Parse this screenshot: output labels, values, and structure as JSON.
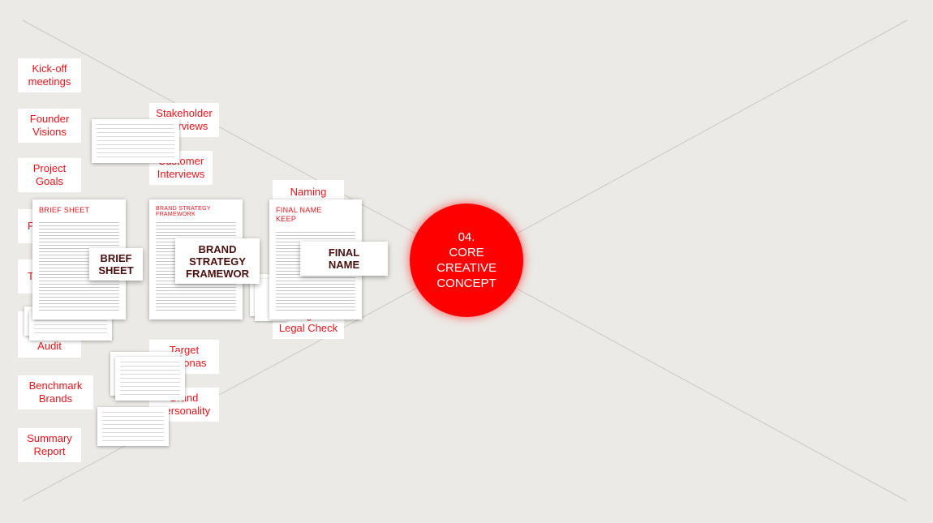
{
  "colors": {
    "accent": "#e8141b",
    "circle": "#ff0000",
    "background": "#ebeae6",
    "label_text": "#4a0f0f"
  },
  "left_column": [
    "Kick-off meetings",
    "Founder Visions",
    "Project Goals",
    "P",
    "T",
    "Audit",
    "Benchmark Brands",
    "Summary Report"
  ],
  "middle_column": [
    "Stakeholder Interviews",
    "Customer Interviews",
    "Target Personas",
    "Brand Personality"
  ],
  "naming_column": [
    "Naming",
    "Google & Legal Check"
  ],
  "documents": {
    "brief_sheet": {
      "title": "BRIEF SHEET",
      "label": "BRIEF SHEET"
    },
    "brand_strategy": {
      "title": "BRAND STRATEGY FRAMEWORK",
      "label": "BRAND STRATEGY FRAMEWOR"
    },
    "final_name": {
      "title": "FINAL NAME KEEP",
      "label": "FINAL NAME"
    }
  },
  "core": {
    "number": "04.",
    "line1": "CORE",
    "line2": "CREATIVE",
    "line3": "CONCEPT"
  }
}
